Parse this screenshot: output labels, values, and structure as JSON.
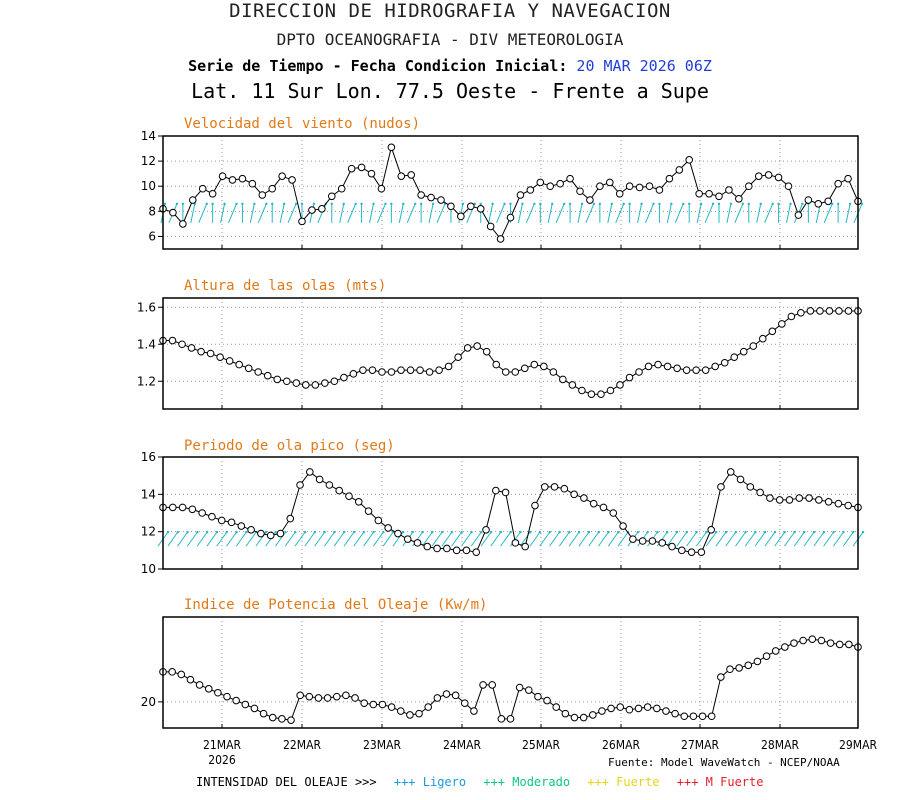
{
  "header": {
    "title1": "DIRECCION DE HIDROGRAFIA Y NAVEGACION",
    "title2": "DPTO OCEANOGRAFIA - DIV METEOROLOGIA",
    "title3_label": "Serie de Tiempo - Fecha Condicion Inicial:",
    "title3_date": "20 MAR 2026 06Z",
    "title4": "Lat. 11 Sur  Lon. 77.5 Oeste - Frente a Supe"
  },
  "chart_data": [
    {
      "type": "line",
      "title": "Velocidad del viento (nudos)",
      "ylim": [
        5,
        14
      ],
      "yticks": [
        6,
        8,
        10,
        12,
        14
      ],
      "grid": true,
      "direction_arrows": true,
      "arrow_color": "#20b8c8",
      "values": [
        8.2,
        7.9,
        7.0,
        8.9,
        9.8,
        9.4,
        10.8,
        10.5,
        10.6,
        10.2,
        9.3,
        9.8,
        10.8,
        10.5,
        7.2,
        8.1,
        8.2,
        9.2,
        9.8,
        11.4,
        11.5,
        11.0,
        9.8,
        13.1,
        10.8,
        10.9,
        9.3,
        9.1,
        8.9,
        8.4,
        7.6,
        8.4,
        8.2,
        6.8,
        5.8,
        7.5,
        9.3,
        9.7,
        10.3,
        10.0,
        10.2,
        10.6,
        9.6,
        8.9,
        10.0,
        10.3,
        9.4,
        10.0,
        9.9,
        10.0,
        9.7,
        10.6,
        11.3,
        12.1,
        9.4,
        9.4,
        9.2,
        9.7,
        9.0,
        10.0,
        10.8,
        10.9,
        10.7,
        10.0,
        7.7,
        8.9,
        8.6,
        8.8,
        10.2,
        10.6,
        8.8
      ]
    },
    {
      "type": "line",
      "title": "Altura de las olas (mts)",
      "ylim": [
        1.05,
        1.65
      ],
      "yticks": [
        1.2,
        1.4,
        1.6
      ],
      "ytick_labels": [
        "1.2",
        "1.4",
        "1.6"
      ],
      "grid": true,
      "values": [
        1.42,
        1.42,
        1.4,
        1.38,
        1.36,
        1.35,
        1.33,
        1.31,
        1.29,
        1.27,
        1.25,
        1.23,
        1.21,
        1.2,
        1.19,
        1.18,
        1.18,
        1.19,
        1.2,
        1.22,
        1.24,
        1.26,
        1.26,
        1.25,
        1.25,
        1.26,
        1.26,
        1.26,
        1.25,
        1.26,
        1.28,
        1.33,
        1.38,
        1.39,
        1.36,
        1.29,
        1.25,
        1.25,
        1.27,
        1.29,
        1.28,
        1.25,
        1.21,
        1.18,
        1.15,
        1.13,
        1.13,
        1.15,
        1.18,
        1.22,
        1.25,
        1.28,
        1.29,
        1.28,
        1.27,
        1.26,
        1.26,
        1.26,
        1.28,
        1.3,
        1.33,
        1.36,
        1.39,
        1.43,
        1.47,
        1.51,
        1.55,
        1.57,
        1.58,
        1.58,
        1.58,
        1.58,
        1.58,
        1.58
      ]
    },
    {
      "type": "line",
      "title": "Periodo de ola pico (seg)",
      "title_display": "Periodo de ola pico (seg)",
      "ylim": [
        10,
        16
      ],
      "yticks": [
        10,
        12,
        14,
        16
      ],
      "grid": true,
      "direction_arrows": true,
      "arrow_color": "#20b8c8",
      "values": [
        13.3,
        13.3,
        13.3,
        13.2,
        13.0,
        12.8,
        12.6,
        12.5,
        12.3,
        12.1,
        11.9,
        11.8,
        11.9,
        12.7,
        14.5,
        15.2,
        14.8,
        14.5,
        14.2,
        13.9,
        13.6,
        13.1,
        12.6,
        12.2,
        11.9,
        11.6,
        11.4,
        11.2,
        11.1,
        11.1,
        11.0,
        11.0,
        10.9,
        12.1,
        14.2,
        14.1,
        11.4,
        11.2,
        13.4,
        14.4,
        14.4,
        14.3,
        14.0,
        13.8,
        13.5,
        13.3,
        13.0,
        12.3,
        11.6,
        11.5,
        11.5,
        11.4,
        11.2,
        11.0,
        10.9,
        10.9,
        12.1,
        14.4,
        15.2,
        14.8,
        14.4,
        14.1,
        13.8,
        13.7,
        13.7,
        13.8,
        13.8,
        13.7,
        13.6,
        13.5,
        13.4,
        13.3
      ]
    },
    {
      "type": "line",
      "title": "Indice de Potencia del Oleaje (Kw/m)",
      "ylim": [
        18,
        26.5
      ],
      "yticks": [
        20
      ],
      "grid": true,
      "values": [
        22.3,
        22.3,
        22.1,
        21.7,
        21.3,
        21.0,
        20.7,
        20.4,
        20.1,
        19.8,
        19.5,
        19.1,
        18.8,
        18.7,
        18.6,
        20.5,
        20.4,
        20.3,
        20.3,
        20.4,
        20.5,
        20.3,
        19.9,
        19.8,
        19.8,
        19.6,
        19.3,
        19.0,
        19.1,
        19.6,
        20.3,
        20.6,
        20.5,
        19.9,
        19.3,
        21.3,
        21.3,
        18.7,
        18.7,
        21.1,
        20.9,
        20.4,
        20.1,
        19.6,
        19.1,
        18.8,
        18.8,
        19.0,
        19.3,
        19.5,
        19.6,
        19.4,
        19.5,
        19.6,
        19.5,
        19.3,
        19.1,
        18.9,
        18.9,
        18.9,
        18.9,
        21.9,
        22.5,
        22.6,
        22.8,
        23.1,
        23.5,
        23.9,
        24.2,
        24.5,
        24.7,
        24.8,
        24.7,
        24.5,
        24.4,
        24.4,
        24.2
      ]
    }
  ],
  "x_axis": {
    "labels": [
      "21MAR",
      "22MAR",
      "23MAR",
      "24MAR",
      "25MAR",
      "26MAR",
      "27MAR",
      "28MAR",
      "29MAR"
    ],
    "year": "2026"
  },
  "footer": {
    "intensity_label": "INTENSIDAD DEL OLEAJE >>>",
    "legend": [
      {
        "text": "+++ Ligero",
        "color": "#1a9be0"
      },
      {
        "text": "+++ Moderado",
        "color": "#12c48a"
      },
      {
        "text": "+++ Fuerte",
        "color": "#e8d21a"
      },
      {
        "text": "+++ M Fuerte",
        "color": "#e8202a"
      }
    ],
    "source": "Fuente: Model WaveWatch - NCEP/NOAA"
  }
}
